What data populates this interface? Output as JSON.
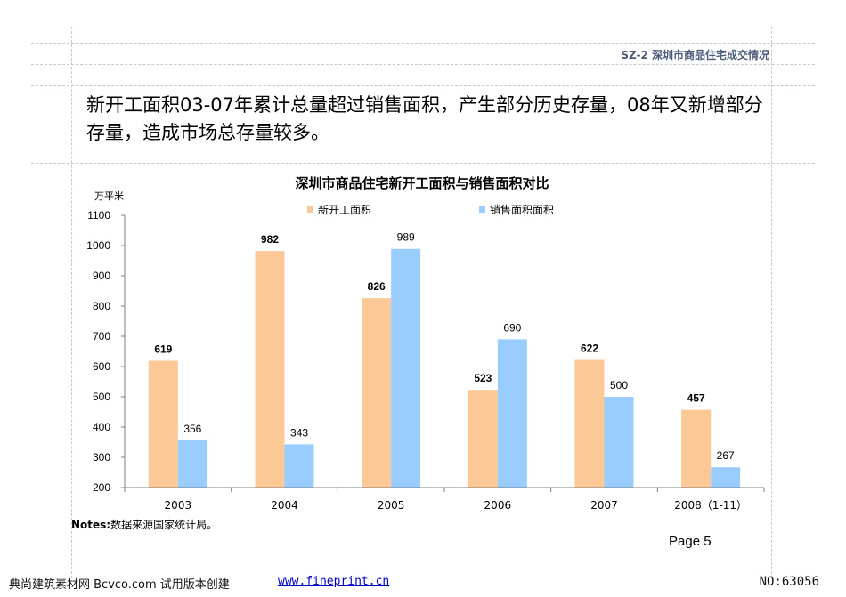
{
  "header": {
    "tag": "SZ-2  深圳市商品住宅成交情况"
  },
  "headline": "新开工面积03-07年累计总量超过销售面积，产生部分历史存量，08年又新增部分存量，造成市场总存量较多。",
  "chart_data": {
    "type": "bar",
    "title": "深圳市商品住宅新开工面积与销售面积对比",
    "ylabel": "万平米",
    "xlabel": "",
    "ylim": [
      200,
      1100
    ],
    "yticks": [
      200,
      300,
      400,
      500,
      600,
      700,
      800,
      900,
      1000,
      1100
    ],
    "categories": [
      "2003",
      "2004",
      "2005",
      "2006",
      "2007",
      "2008（1-11）"
    ],
    "series": [
      {
        "name": "新开工面积",
        "values": [
          619,
          982,
          826,
          523,
          622,
          457
        ],
        "color": "#fcc896",
        "label_bold": true
      },
      {
        "name": "销售面积面积",
        "values": [
          356,
          343,
          989,
          690,
          500,
          267
        ],
        "color": "#99ccff",
        "label_bold": false
      }
    ],
    "grid": false,
    "legend": "top"
  },
  "notes": {
    "label": "Notes:",
    "text": "数据来源国家统计局。"
  },
  "page": "Page 5",
  "footer": {
    "left": "典尚建筑素材网 Bcvco.com 试用版本创建",
    "link": "www.fineprint.cn",
    "right": "NO:63056"
  }
}
